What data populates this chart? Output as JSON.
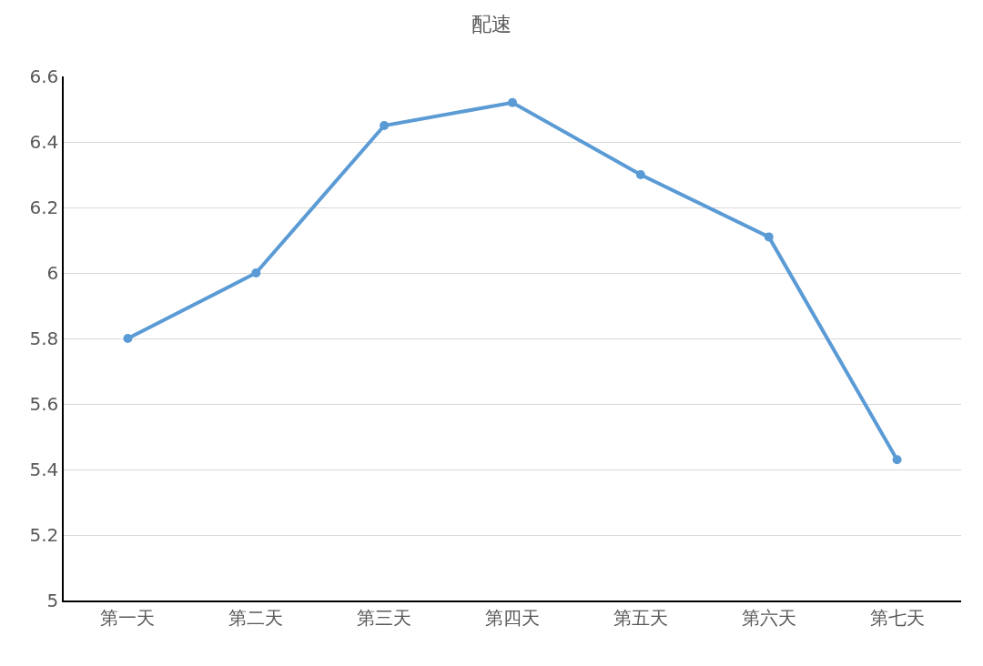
{
  "chart_data": {
    "type": "line",
    "title": "配速",
    "categories": [
      "第一天",
      "第二天",
      "第三天",
      "第四天",
      "第五天",
      "第六天",
      "第七天"
    ],
    "series": [
      {
        "color": "#5b9bd5",
        "values": [
          5.8,
          6.0,
          6.45,
          6.52,
          6.3,
          6.11,
          5.43
        ]
      }
    ],
    "ylim": [
      5,
      6.6
    ],
    "yticks": [
      5,
      5.2,
      5.4,
      5.6,
      5.8,
      6,
      6.2,
      6.4,
      6.6
    ],
    "grid": "y",
    "legend": false,
    "marker": "circle",
    "line_style": "solid"
  }
}
